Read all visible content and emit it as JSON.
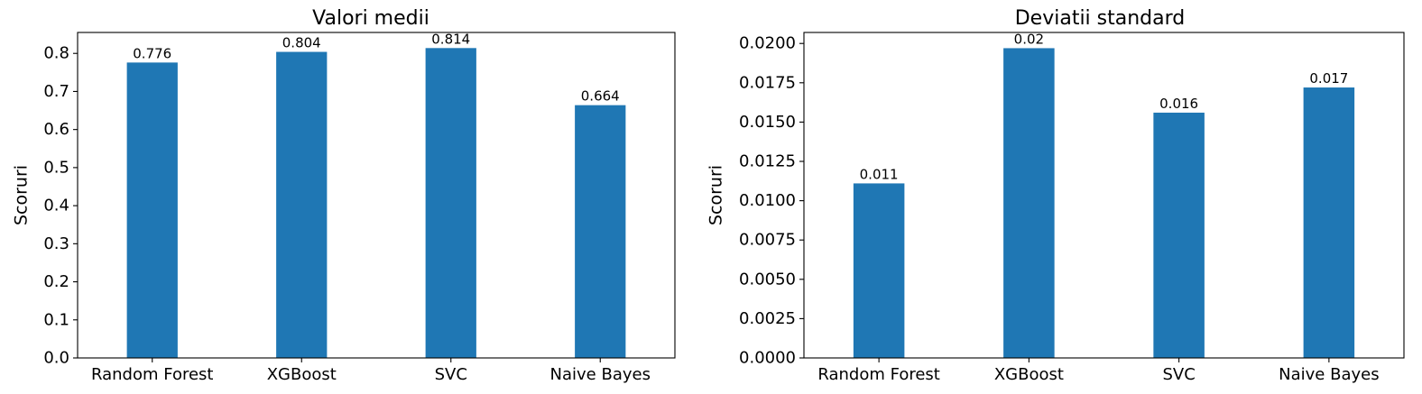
{
  "chart_data": [
    {
      "type": "bar",
      "title": "Valori medii",
      "xlabel": "",
      "ylabel": "Scoruri",
      "categories": [
        "Random Forest",
        "XGBoost",
        "SVC",
        "Naive Bayes"
      ],
      "values": [
        0.776,
        0.804,
        0.814,
        0.664
      ],
      "data_labels": [
        "0.776",
        "0.804",
        "0.814",
        "0.664"
      ],
      "ylim": [
        0,
        0.855
      ],
      "yticks": [
        0.0,
        0.1,
        0.2,
        0.3,
        0.4,
        0.5,
        0.6,
        0.7,
        0.8
      ],
      "ytick_labels": [
        "0.0",
        "0.1",
        "0.2",
        "0.3",
        "0.4",
        "0.5",
        "0.6",
        "0.7",
        "0.8"
      ],
      "bar_color": "#1f77b4",
      "grid": false
    },
    {
      "type": "bar",
      "title": "Deviatii standard",
      "xlabel": "",
      "ylabel": "Scoruri",
      "categories": [
        "Random Forest",
        "XGBoost",
        "SVC",
        "Naive Bayes"
      ],
      "values": [
        0.0111,
        0.0197,
        0.0156,
        0.0172
      ],
      "data_labels": [
        "0.011",
        "0.02",
        "0.016",
        "0.017"
      ],
      "ylim": [
        0,
        0.0207
      ],
      "yticks": [
        0.0,
        0.0025,
        0.005,
        0.0075,
        0.01,
        0.0125,
        0.015,
        0.0175,
        0.02
      ],
      "ytick_labels": [
        "0.0000",
        "0.0025",
        "0.0050",
        "0.0075",
        "0.0100",
        "0.0125",
        "0.0150",
        "0.0175",
        "0.0200"
      ],
      "bar_color": "#1f77b4",
      "grid": false
    }
  ]
}
